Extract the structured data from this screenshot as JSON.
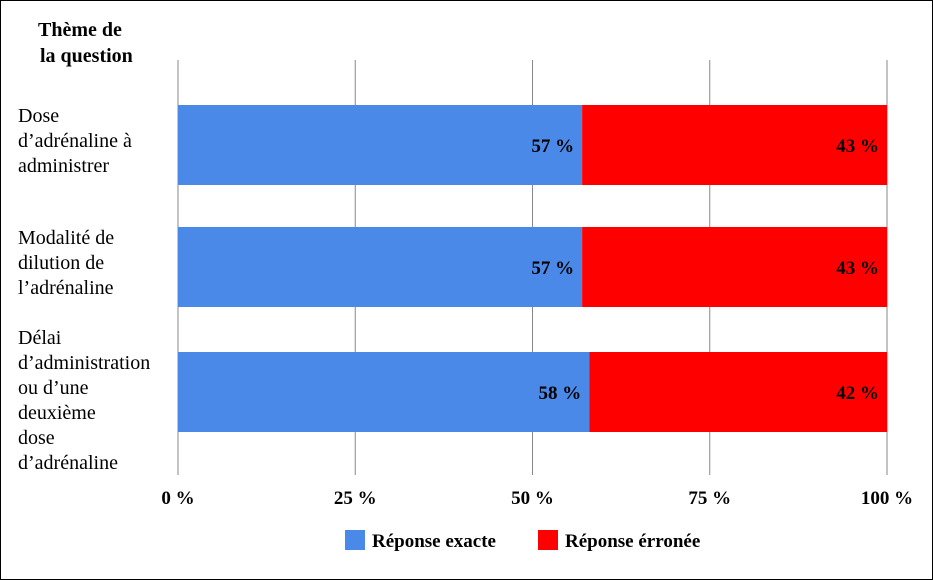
{
  "chart_data": {
    "type": "bar",
    "orientation": "horizontal",
    "stacked": true,
    "axis_title": [
      "Thème de",
      "la question"
    ],
    "categories": [
      [
        "Dose",
        "d’adrénaline à",
        "administrer"
      ],
      [
        "Modalité de",
        "dilution de",
        "l’adrénaline"
      ],
      [
        "Délai",
        "d’administration",
        "ou d’une",
        "deuxième",
        "dose",
        "d’adrénaline"
      ]
    ],
    "series": [
      {
        "name": "Réponse exacte",
        "values": [
          57,
          57,
          58
        ],
        "labels": [
          "57 %",
          "57 %",
          "58 %"
        ],
        "color": "#4a89e8"
      },
      {
        "name": "Réponse érronée",
        "values": [
          43,
          43,
          42
        ],
        "labels": [
          "43 %",
          "43 %",
          "42 %"
        ],
        "color": "#ff0000"
      }
    ],
    "xlim": [
      0,
      100
    ],
    "xticks": [
      "0 %",
      "25 %",
      "50 %",
      "75 %",
      "100 %"
    ],
    "grid": true,
    "legend_position": "bottom"
  }
}
